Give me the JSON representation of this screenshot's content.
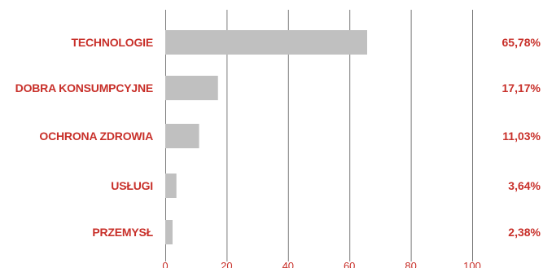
{
  "chart_data": {
    "type": "bar",
    "orientation": "horizontal",
    "categories": [
      "TECHNOLOGIE",
      "DOBRA KONSUMPCYJNE",
      "OCHRONA ZDROWIA",
      "USŁUGI",
      "PRZEMYSŁ"
    ],
    "values": [
      65.78,
      17.17,
      11.03,
      3.64,
      2.38
    ],
    "value_labels": [
      "65,78%",
      "17,17%",
      "11,03%",
      "3,64%",
      "2,38%"
    ],
    "x_ticks": [
      "0",
      "20",
      "40",
      "60",
      "80",
      "100"
    ],
    "xlim": [
      0,
      100
    ],
    "grid": "vertical",
    "colors": {
      "bar": "#c0c0c0",
      "label": "#c8302a",
      "grid": "#7a7a7a",
      "tick": "#c8302a"
    }
  }
}
